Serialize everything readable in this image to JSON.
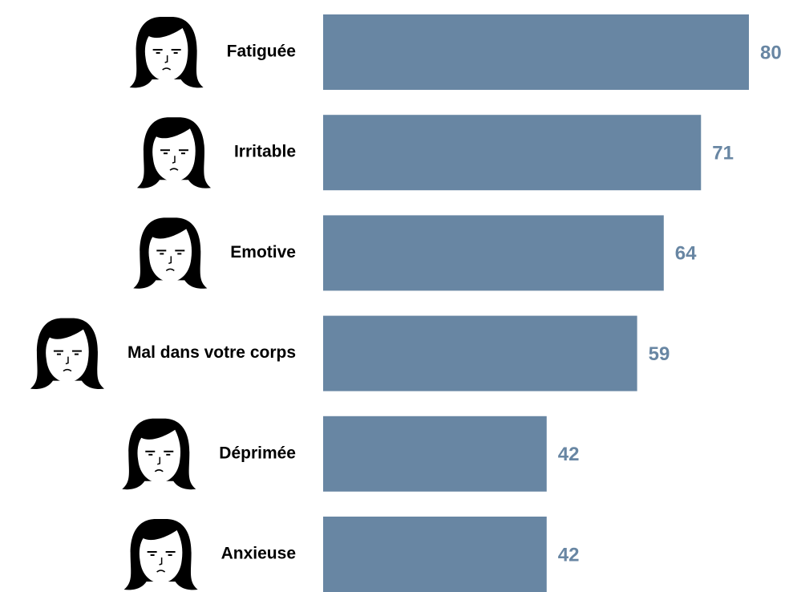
{
  "chart_data": {
    "type": "bar",
    "orientation": "horizontal",
    "categories": [
      "Fatiguée",
      "Irritable",
      "Emotive",
      "Mal dans votre corps",
      "Déprimée",
      "Anxieuse"
    ],
    "values": [
      80,
      71,
      64,
      59,
      42,
      42
    ],
    "color": "#6886a3"
  }
}
